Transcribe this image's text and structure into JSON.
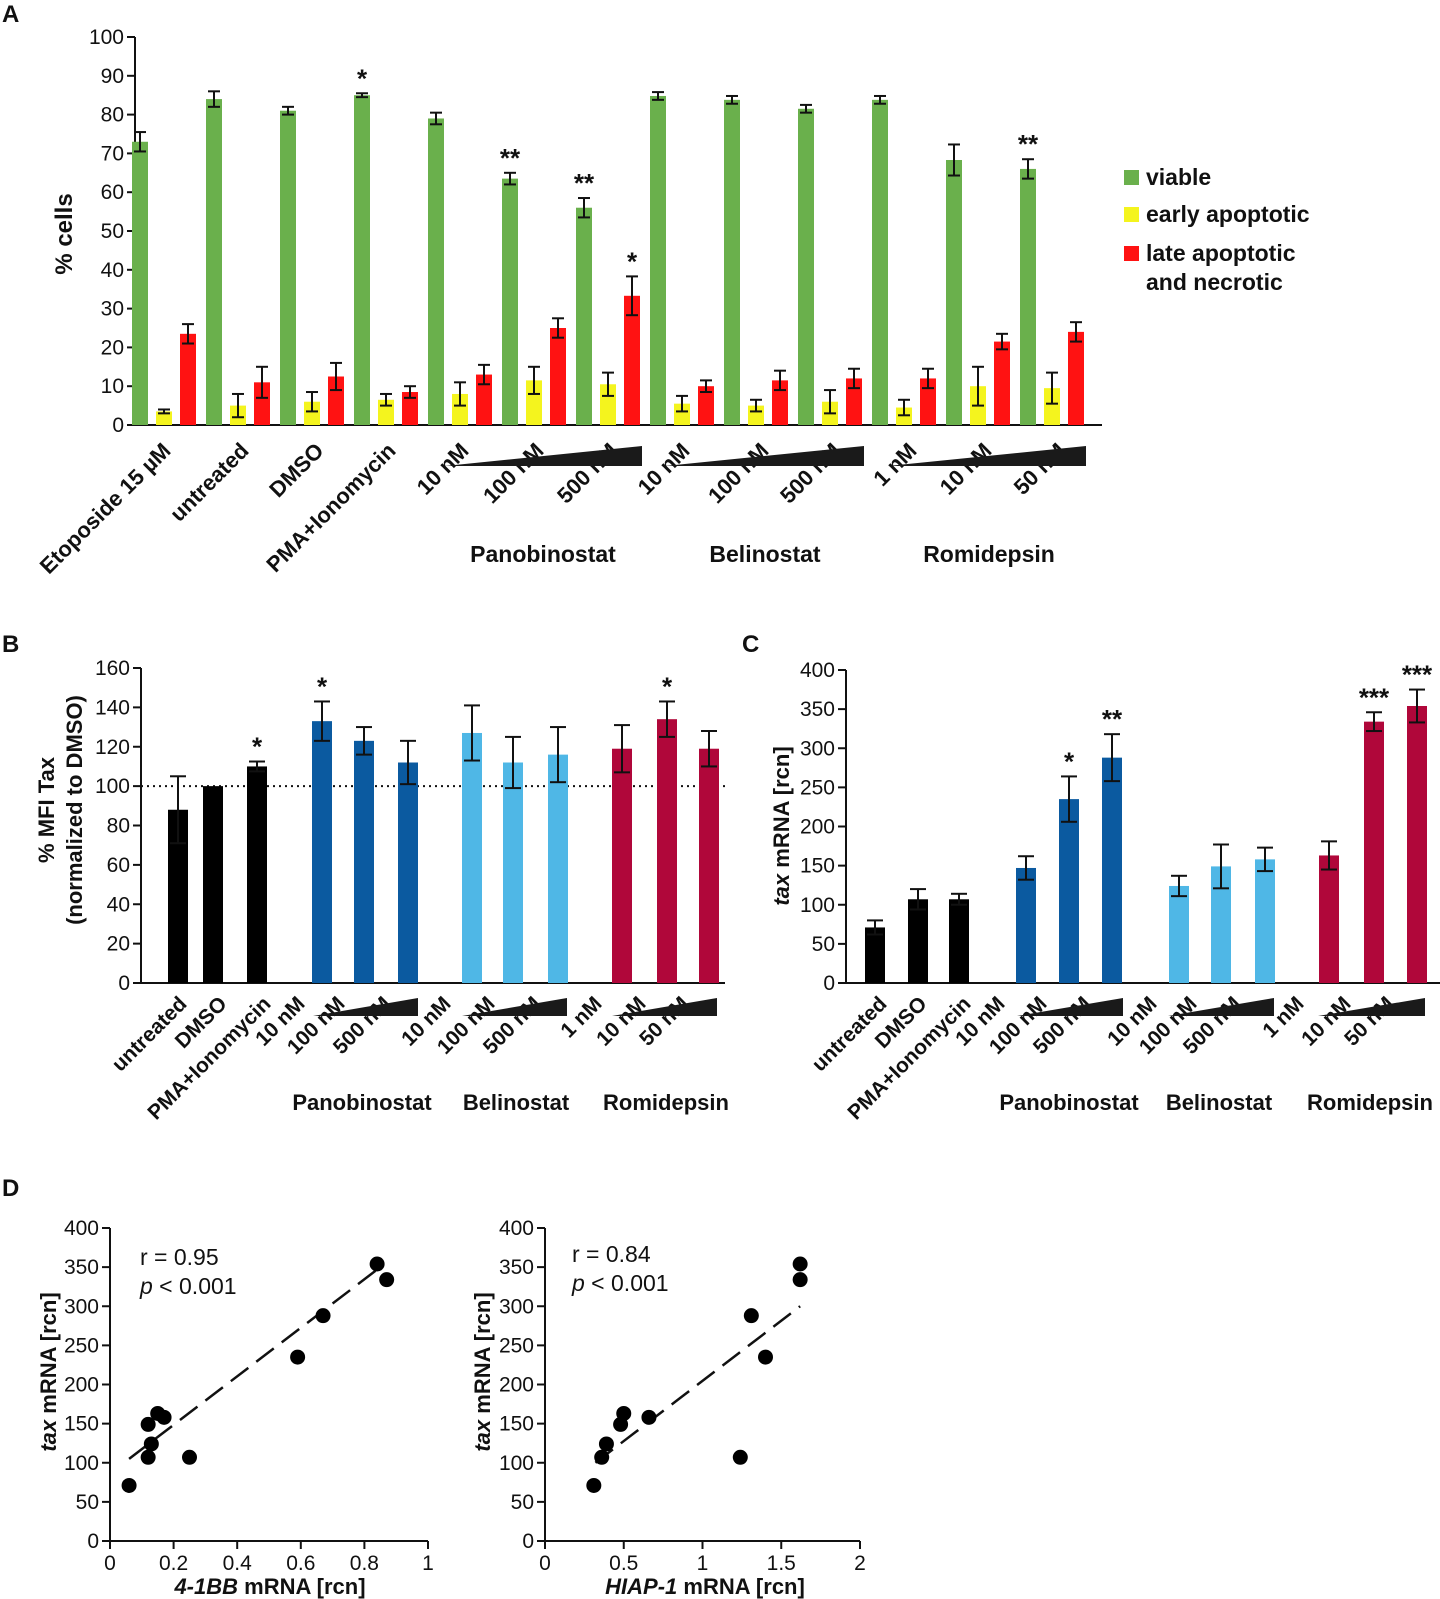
{
  "colors": {
    "viable": "#6ab04c",
    "early": "#f4f41e",
    "late": "#ff1212",
    "control": "#000000",
    "panobinostat": "#0b5aa0",
    "belinostat": "#4fb7e6",
    "romidepsin": "#b0073a"
  },
  "chart_data": [
    {
      "panel": "A",
      "type": "bar",
      "ylabel": "% cells",
      "ylim": [
        0,
        100
      ],
      "yticks": [
        "0",
        "10",
        "20",
        "30",
        "40",
        "50",
        "60",
        "70",
        "80",
        "90",
        "100"
      ],
      "categories": [
        "Etoposide 15 µM",
        "untreated",
        "DMSO",
        "PMA+Ionomycin",
        "10 nM",
        "100 nM",
        "500 nM",
        "10 nM",
        "100 nM",
        "500 nM",
        "1 nM",
        "10 nM",
        "50 nM"
      ],
      "groups": [
        "Panobinostat",
        "Belinostat",
        "Romidepsin"
      ],
      "legend": [
        "viable",
        "early apoptotic",
        "late apoptotic",
        "and necrotic"
      ],
      "series": [
        {
          "name": "viable",
          "values": [
            73,
            84,
            81,
            85,
            79,
            63.5,
            56,
            84.8,
            83.8,
            81.5,
            83.8,
            68.3,
            66
          ],
          "errors": [
            2.5,
            2,
            1,
            0.5,
            1.5,
            1.5,
            2.5,
            1,
            1,
            1,
            1,
            4,
            2.5
          ]
        },
        {
          "name": "early apoptotic",
          "values": [
            3.5,
            5,
            6,
            6.5,
            8,
            11.5,
            10.5,
            5.5,
            5,
            6,
            4.5,
            10,
            9.5
          ],
          "errors": [
            0.5,
            3,
            2.5,
            1.5,
            3,
            3.5,
            3,
            2,
            1.5,
            3,
            2,
            5,
            4
          ]
        },
        {
          "name": "late apoptotic and necrotic",
          "values": [
            23.5,
            11,
            12.5,
            8.5,
            13,
            25,
            33.3,
            10,
            11.5,
            12,
            12,
            21.5,
            24
          ],
          "errors": [
            2.5,
            4,
            3.5,
            1.5,
            2.5,
            2.5,
            5,
            1.5,
            2.5,
            2.5,
            2.5,
            2,
            2.5
          ]
        }
      ],
      "stars": [
        {
          "category": 3,
          "label": "*"
        },
        {
          "category": 5,
          "label": "**"
        },
        {
          "category": 6,
          "label": "**"
        },
        {
          "category": 6,
          "label": "*",
          "series": 2
        },
        {
          "category": 12,
          "label": "**"
        }
      ]
    },
    {
      "panel": "B",
      "type": "bar",
      "ylabel_line1": "% MFI Tax",
      "ylabel_line2": "(normalized to DMSO)",
      "ylim": [
        0,
        160
      ],
      "yticks": [
        "0",
        "20",
        "40",
        "60",
        "80",
        "100",
        "120",
        "140",
        "160"
      ],
      "reference_line": 100,
      "categories": [
        "untreated",
        "DMSO",
        "PMA+Ionomycin",
        "10 nM",
        "100 nM",
        "500 nM",
        "10 nM",
        "100 nM",
        "500 nM",
        "1 nM",
        "10 nM",
        "50 nM"
      ],
      "groups": [
        "Panobinostat",
        "Belinostat",
        "Romidepsin"
      ],
      "values": [
        88,
        100,
        110,
        133,
        123,
        112,
        127,
        112,
        116,
        119,
        134,
        119
      ],
      "errors": [
        17,
        0,
        2.5,
        10,
        7,
        11,
        14,
        13,
        14,
        12,
        9,
        9
      ],
      "stars": [
        {
          "category": 2,
          "label": "*"
        },
        {
          "category": 3,
          "label": "*"
        },
        {
          "category": 10,
          "label": "*"
        }
      ]
    },
    {
      "panel": "C",
      "type": "bar",
      "ylabel_italic": "tax",
      "ylabel_rest": " mRNA [rcn]",
      "ylim": [
        0,
        400
      ],
      "yticks": [
        "0",
        "50",
        "100",
        "150",
        "200",
        "250",
        "300",
        "350",
        "400"
      ],
      "categories": [
        "untreated",
        "DMSO",
        "PMA+Ionomycin",
        "10 nM",
        "100 nM",
        "500 nM",
        "10 nM",
        "100 nM",
        "500 nM",
        "1 nM",
        "10 nM",
        "50 nM"
      ],
      "groups": [
        "Panobinostat",
        "Belinostat",
        "Romidepsin"
      ],
      "values": [
        71,
        107,
        107,
        147,
        235,
        288,
        124,
        149,
        158,
        163,
        334,
        354
      ],
      "errors": [
        9,
        13,
        7,
        15,
        29,
        30,
        13,
        28,
        15,
        18,
        12,
        21
      ],
      "stars": [
        {
          "category": 4,
          "label": "*"
        },
        {
          "category": 5,
          "label": "**"
        },
        {
          "category": 10,
          "label": "***"
        },
        {
          "category": 11,
          "label": "***"
        }
      ]
    },
    {
      "panel": "D-left",
      "type": "scatter",
      "xlabel_italic": "4-1BB",
      "xlabel_rest": " mRNA [rcn]",
      "ylabel_italic": "tax",
      "ylabel_rest": " mRNA [rcn]",
      "xlim": [
        0,
        1
      ],
      "ylim": [
        0,
        400
      ],
      "xticks": [
        "0",
        "0.2",
        "0.4",
        "0.6",
        "0.8",
        "1"
      ],
      "yticks": [
        "0",
        "50",
        "100",
        "150",
        "200",
        "250",
        "300",
        "350",
        "400"
      ],
      "r_text": "r = 0.95",
      "p_italic": "p",
      "p_rest": " < 0.001",
      "fit": [
        [
          0.06,
          105
        ],
        [
          0.85,
          350
        ]
      ],
      "x": [
        0.06,
        0.12,
        0.13,
        0.12,
        0.15,
        0.17,
        0.25,
        0.59,
        0.67,
        0.84,
        0.87
      ],
      "y": [
        71,
        107,
        124,
        149,
        163,
        158,
        107,
        235,
        288,
        354,
        334
      ]
    },
    {
      "panel": "D-right",
      "type": "scatter",
      "xlabel_italic": "HIAP-1",
      "xlabel_rest": " mRNA [rcn]",
      "ylabel_italic": "tax",
      "ylabel_rest": " mRNA [rcn]",
      "xlim": [
        0,
        2
      ],
      "ylim": [
        0,
        400
      ],
      "xticks": [
        "0",
        "0.5",
        "1",
        "1.5",
        "2"
      ],
      "yticks": [
        "0",
        "50",
        "100",
        "150",
        "200",
        "250",
        "300",
        "350",
        "400"
      ],
      "r_text": "r = 0.84",
      "p_italic": "p",
      "p_rest": " < 0.001",
      "fit": [
        [
          0.32,
          100
        ],
        [
          1.62,
          300
        ]
      ],
      "x": [
        0.31,
        0.36,
        0.39,
        0.48,
        0.5,
        0.66,
        1.24,
        1.31,
        1.4,
        1.62,
        1.62
      ],
      "y": [
        71,
        107,
        124,
        149,
        163,
        158,
        107,
        288,
        235,
        354,
        334
      ]
    }
  ],
  "panel_labels": [
    "A",
    "B",
    "C",
    "D"
  ]
}
